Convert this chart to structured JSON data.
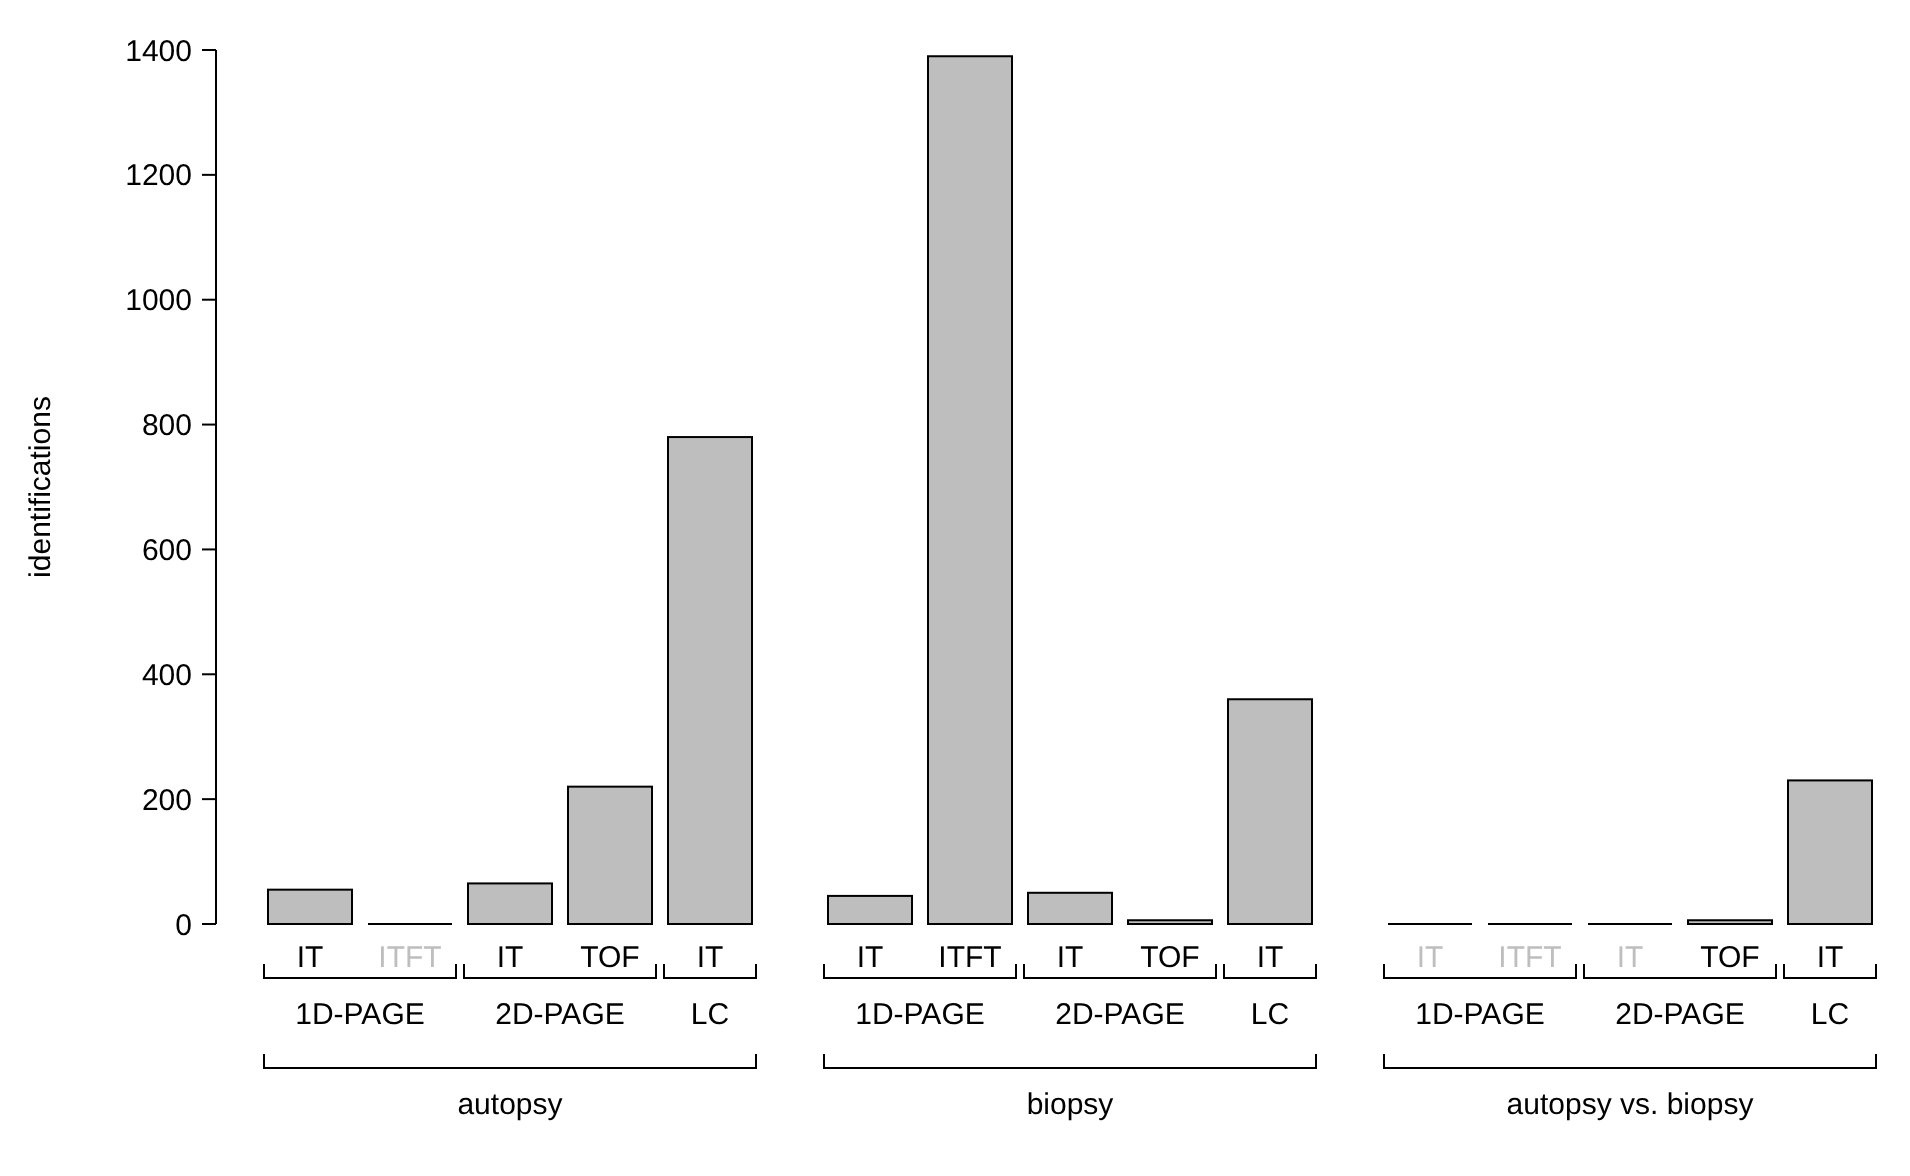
{
  "chart_data": {
    "type": "bar",
    "ylabel": "identifications",
    "categories": [
      "IT",
      "ITFT",
      "IT",
      "TOF",
      "IT",
      "IT",
      "ITFT",
      "IT",
      "TOF",
      "IT",
      "IT",
      "ITFT",
      "IT",
      "TOF",
      "IT"
    ],
    "values": [
      55,
      0,
      65,
      220,
      780,
      45,
      1390,
      50,
      6,
      360,
      0,
      0,
      0,
      6,
      230
    ],
    "color": "#bebebe",
    "ylim": [
      0,
      1400
    ],
    "yticks": [
      0,
      200,
      400,
      600,
      800,
      1000,
      1200,
      1400
    ],
    "annotations": [
      "1D-PAGE",
      "2D-PAGE",
      "LC",
      "autopsy",
      "1D-PAGE",
      "2D-PAGE",
      "LC",
      "biopsy",
      "1D-PAGE",
      "2D-PAGE",
      "LC",
      "autopsy vs. biopsy"
    ]
  }
}
